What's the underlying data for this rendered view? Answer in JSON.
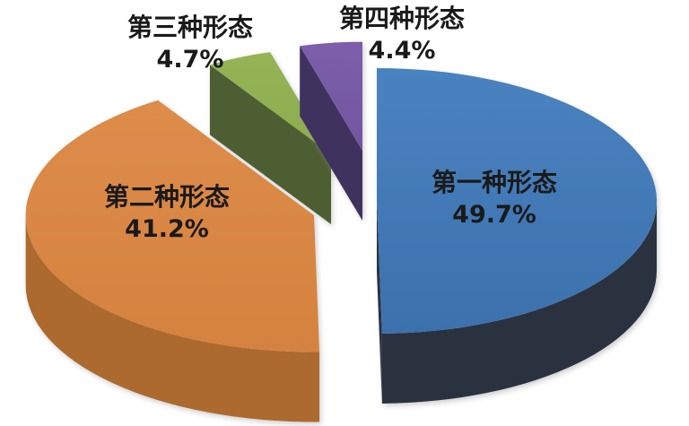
{
  "chart_data": {
    "type": "pie",
    "style": "3d-exploded-pie",
    "title": "",
    "categories": [
      "第一种形态",
      "第二种形态",
      "第三种形态",
      "第四种形态"
    ],
    "values": [
      49.7,
      41.2,
      4.7,
      4.4
    ],
    "unit": "%",
    "labels": [
      {
        "name": "第一种形态",
        "pct": "49.7%",
        "placement": "inside-slice"
      },
      {
        "name": "第二种形态",
        "pct": "41.2%",
        "placement": "inside-slice"
      },
      {
        "name": "第三种形态",
        "pct": "4.7%",
        "placement": "outside-top"
      },
      {
        "name": "第四种形态",
        "pct": "4.4%",
        "placement": "outside-top"
      }
    ],
    "colors": {
      "top": [
        "#3B71AD",
        "#D5823F",
        "#8CAC4F",
        "#7256A1"
      ],
      "top_light": [
        "#4A82C0",
        "#DE8C4A",
        "#95B455",
        "#7C5EAB"
      ],
      "side": [
        "#2A3240",
        "#AC6A2E",
        "#4E5E33",
        "#40305F"
      ]
    },
    "text_color": "#1A1A1A",
    "background": "#FFFFFF",
    "legend": "none",
    "start_angle_deg": 0,
    "direction": "clockwise",
    "exploded": true
  }
}
